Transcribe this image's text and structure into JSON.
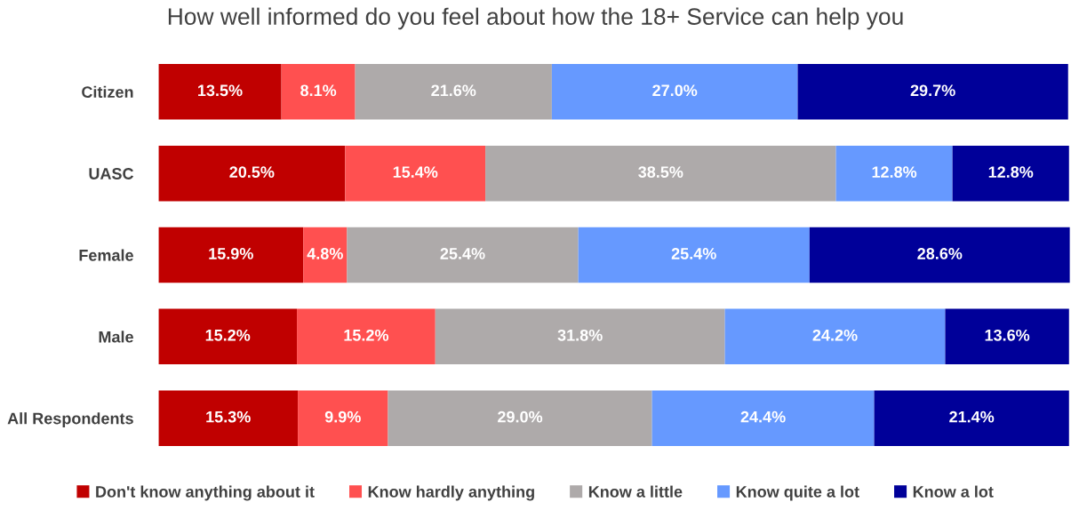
{
  "chart_data": {
    "type": "bar",
    "orientation": "horizontal",
    "stacked": true,
    "title": "How well informed do you feel about how the 18+ Service can help you",
    "categories": [
      "Citizen",
      "UASC",
      "Female",
      "Male",
      "All Respondents"
    ],
    "series": [
      {
        "name": "Don't know anything about it",
        "color": "#c00000",
        "values": [
          13.5,
          20.5,
          15.9,
          15.2,
          15.3
        ],
        "value_labels": [
          "13.5%",
          "20.5%",
          "15.9%",
          "15.2%",
          "15.3%"
        ]
      },
      {
        "name": "Know hardly anything",
        "color": "#ff5050",
        "values": [
          8.1,
          15.4,
          4.8,
          15.2,
          9.9
        ],
        "value_labels": [
          "8.1%",
          "15.4%",
          "4.8%",
          "15.2%",
          "9.9%"
        ]
      },
      {
        "name": "Know a little",
        "color": "#aeaaaa",
        "values": [
          21.6,
          38.5,
          25.4,
          31.8,
          29.0
        ],
        "value_labels": [
          "21.6%",
          "38.5%",
          "25.4%",
          "31.8%",
          "29.0%"
        ]
      },
      {
        "name": "Know quite a lot",
        "color": "#6699ff",
        "values": [
          27.0,
          12.8,
          25.4,
          24.2,
          24.4
        ],
        "value_labels": [
          "27.0%",
          "12.8%",
          "25.4%",
          "24.2%",
          "24.4%"
        ]
      },
      {
        "name": "Know a lot",
        "color": "#000099",
        "values": [
          29.7,
          12.8,
          28.6,
          13.6,
          21.4
        ],
        "value_labels": [
          "29.7%",
          "12.8%",
          "28.6%",
          "13.6%",
          "21.4%"
        ]
      }
    ],
    "legend": "bottom",
    "tick_labels": "y",
    "grid": false
  }
}
